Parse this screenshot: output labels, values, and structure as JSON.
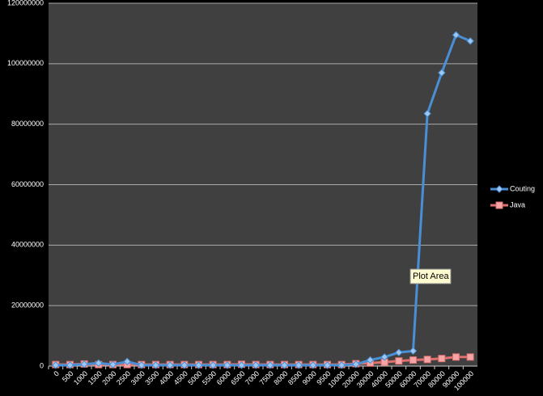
{
  "chart_data": {
    "type": "line",
    "categories": [
      "0",
      "500",
      "1000",
      "1500",
      "2000",
      "2500",
      "3000",
      "3500",
      "4000",
      "4500",
      "5000",
      "5500",
      "6000",
      "6500",
      "7000",
      "7500",
      "8000",
      "8500",
      "9000",
      "9500",
      "10000",
      "20000",
      "30000",
      "40000",
      "50000",
      "60000",
      "70000",
      "80000",
      "90000",
      "100000"
    ],
    "series": [
      {
        "name": "Couting",
        "color": "#4a8fd6",
        "marker": "diamond",
        "values": [
          300000,
          300000,
          600000,
          1000000,
          500000,
          1500000,
          300000,
          300000,
          300000,
          300000,
          300000,
          300000,
          300000,
          300000,
          300000,
          300000,
          300000,
          300000,
          300000,
          300000,
          300000,
          600000,
          2000000,
          3000000,
          4500000,
          5000000,
          83500000,
          97000000,
          109500000,
          107500000
        ]
      },
      {
        "name": "Java",
        "color": "#e07070",
        "marker": "square",
        "values": [
          500000,
          500000,
          700000,
          500000,
          500000,
          500000,
          500000,
          500000,
          500000,
          500000,
          500000,
          500000,
          500000,
          600000,
          500000,
          500000,
          500000,
          500000,
          500000,
          500000,
          500000,
          800000,
          1000000,
          1300000,
          1700000,
          2000000,
          2200000,
          2500000,
          3000000,
          3000000
        ]
      }
    ],
    "ylim": [
      0,
      120000000
    ],
    "yticks": [
      0,
      20000000,
      40000000,
      60000000,
      80000000,
      100000000,
      120000000
    ],
    "grid": true,
    "legend": "right",
    "annotation": "Plot Area"
  }
}
